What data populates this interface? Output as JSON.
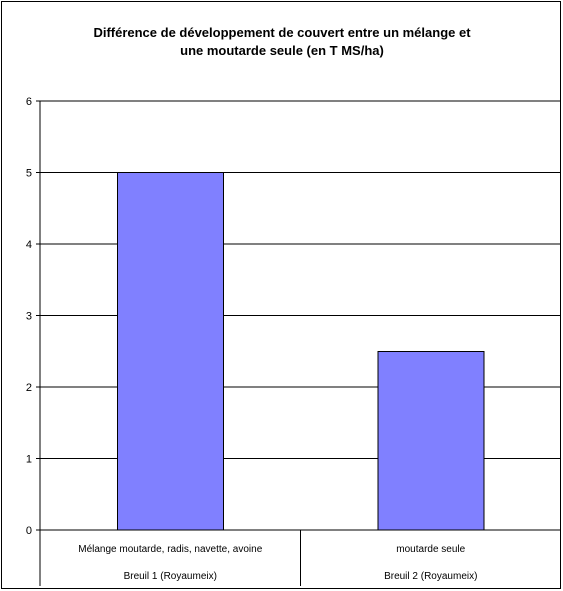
{
  "chart_data": {
    "type": "bar",
    "title": "Différence de développement de couvert entre un mélange et\nune moutarde seule (en T MS/ha)",
    "categories": [
      "Mélange moutarde, radis, navette, avoine",
      "moutarde seule"
    ],
    "groups": [
      "Breuil 1 (Royaumeix)",
      "Breuil 2 (Royaumeix)"
    ],
    "values": [
      5,
      2.5
    ],
    "ylim": [
      0,
      6
    ],
    "yticks": [
      "0",
      "1",
      "2",
      "3",
      "4",
      "5",
      "6"
    ],
    "grid": true,
    "legend": "none",
    "bar_color": "#8080ff"
  }
}
